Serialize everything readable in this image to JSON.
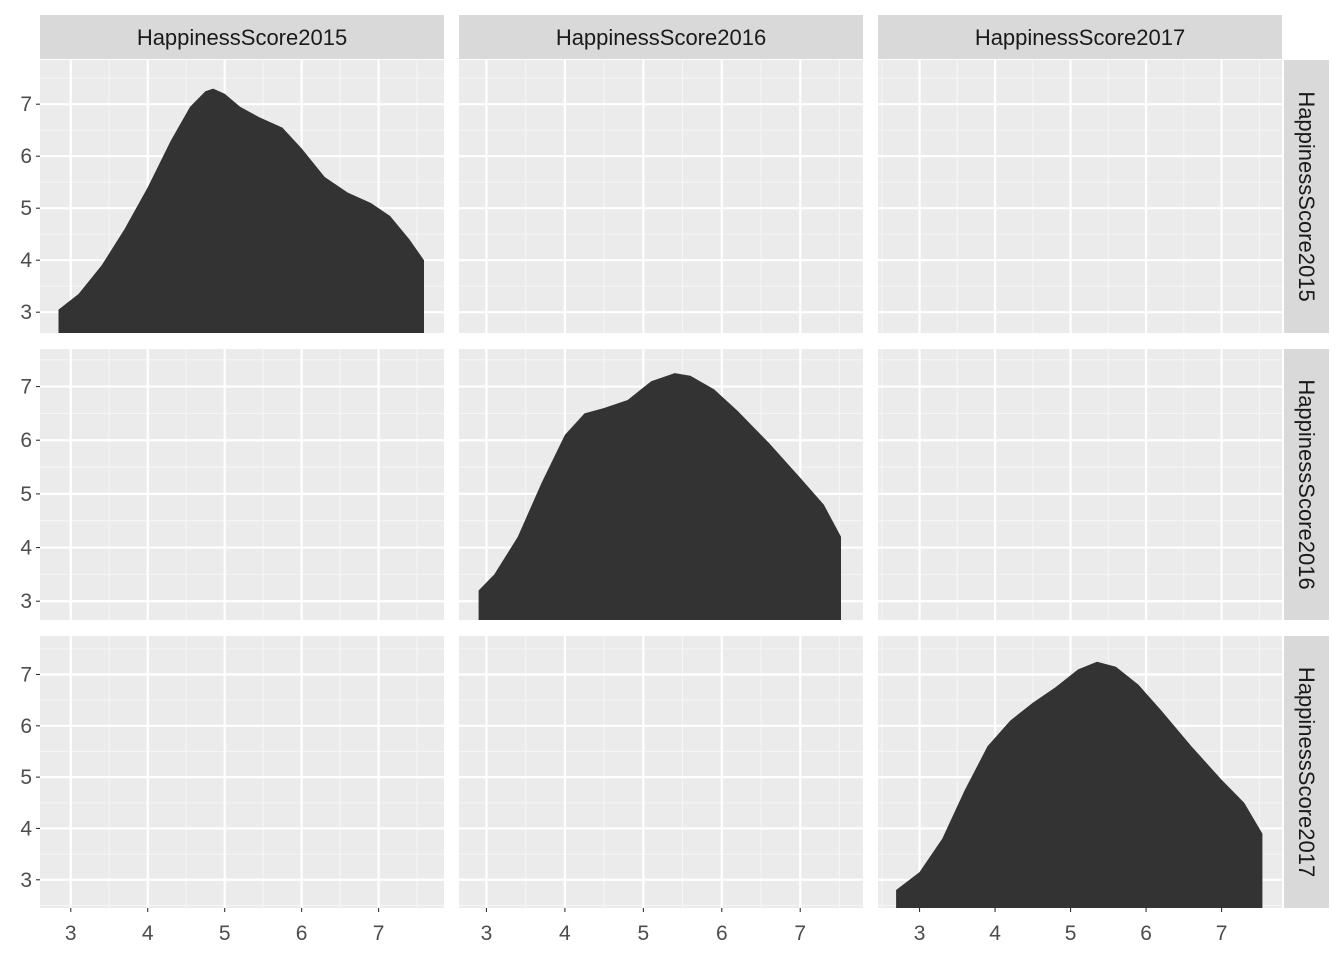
{
  "colors": {
    "panel_background": "#ebebeb",
    "grid_major": "#ffffff",
    "grid_minor": "#f5f5f5",
    "strip_background": "#d9d9d9",
    "density_fill": "#333333",
    "tick_text": "#4d4d4d",
    "strip_text": "#1a1a1a"
  },
  "chart_data": {
    "type": "area",
    "layout": "pairs-matrix",
    "grid": true,
    "legend": "none",
    "column_strips": [
      "HappinessScore2015",
      "HappinessScore2016",
      "HappinessScore2017"
    ],
    "row_strips": [
      "HappinessScore2015",
      "HappinessScore2016",
      "HappinessScore2017"
    ],
    "columns": [
      {
        "name": "HappinessScore2015",
        "xlim": [
          2.6,
          7.85
        ],
        "x_ticks": [
          3,
          4,
          5,
          6,
          7
        ]
      },
      {
        "name": "HappinessScore2016",
        "xlim": [
          2.65,
          7.8
        ],
        "x_ticks": [
          3,
          4,
          5,
          6,
          7
        ]
      },
      {
        "name": "HappinessScore2017",
        "xlim": [
          2.45,
          7.8
        ],
        "x_ticks": [
          3,
          4,
          5,
          6,
          7
        ]
      }
    ],
    "rows": [
      {
        "name": "HappinessScore2015",
        "ylim": [
          2.6,
          7.85
        ],
        "y_ticks": [
          3,
          4,
          5,
          6,
          7
        ]
      },
      {
        "name": "HappinessScore2016",
        "ylim": [
          2.65,
          7.7
        ],
        "y_ticks": [
          3,
          4,
          5,
          6,
          7
        ]
      },
      {
        "name": "HappinessScore2017",
        "ylim": [
          2.45,
          7.75
        ],
        "y_ticks": [
          3,
          4,
          5,
          6,
          7
        ]
      }
    ],
    "diagonal_densities": [
      {
        "variable": "HappinessScore2015",
        "x": [
          2.84,
          3.1,
          3.4,
          3.7,
          4.0,
          4.3,
          4.55,
          4.75,
          4.85,
          5.0,
          5.2,
          5.45,
          5.75,
          6.0,
          6.3,
          6.6,
          6.9,
          7.15,
          7.4,
          7.59
        ],
        "y": [
          3.05,
          3.35,
          3.9,
          4.6,
          5.4,
          6.3,
          6.95,
          7.25,
          7.3,
          7.2,
          6.95,
          6.75,
          6.55,
          6.15,
          5.6,
          5.3,
          5.1,
          4.85,
          4.4,
          4.0
        ]
      },
      {
        "variable": "HappinessScore2016",
        "x": [
          2.9,
          3.1,
          3.4,
          3.7,
          4.0,
          4.25,
          4.5,
          4.8,
          5.1,
          5.4,
          5.6,
          5.9,
          6.2,
          6.6,
          7.0,
          7.3,
          7.52
        ],
        "y": [
          3.2,
          3.5,
          4.2,
          5.2,
          6.1,
          6.5,
          6.6,
          6.75,
          7.1,
          7.25,
          7.2,
          6.95,
          6.55,
          5.95,
          5.3,
          4.8,
          4.2
        ]
      },
      {
        "variable": "HappinessScore2017",
        "x": [
          2.69,
          3.0,
          3.3,
          3.6,
          3.9,
          4.2,
          4.5,
          4.8,
          5.1,
          5.35,
          5.6,
          5.9,
          6.2,
          6.6,
          7.0,
          7.3,
          7.54
        ],
        "y": [
          2.8,
          3.15,
          3.8,
          4.75,
          5.6,
          6.1,
          6.45,
          6.75,
          7.1,
          7.25,
          7.15,
          6.8,
          6.3,
          5.6,
          4.95,
          4.5,
          3.9
        ]
      }
    ]
  }
}
